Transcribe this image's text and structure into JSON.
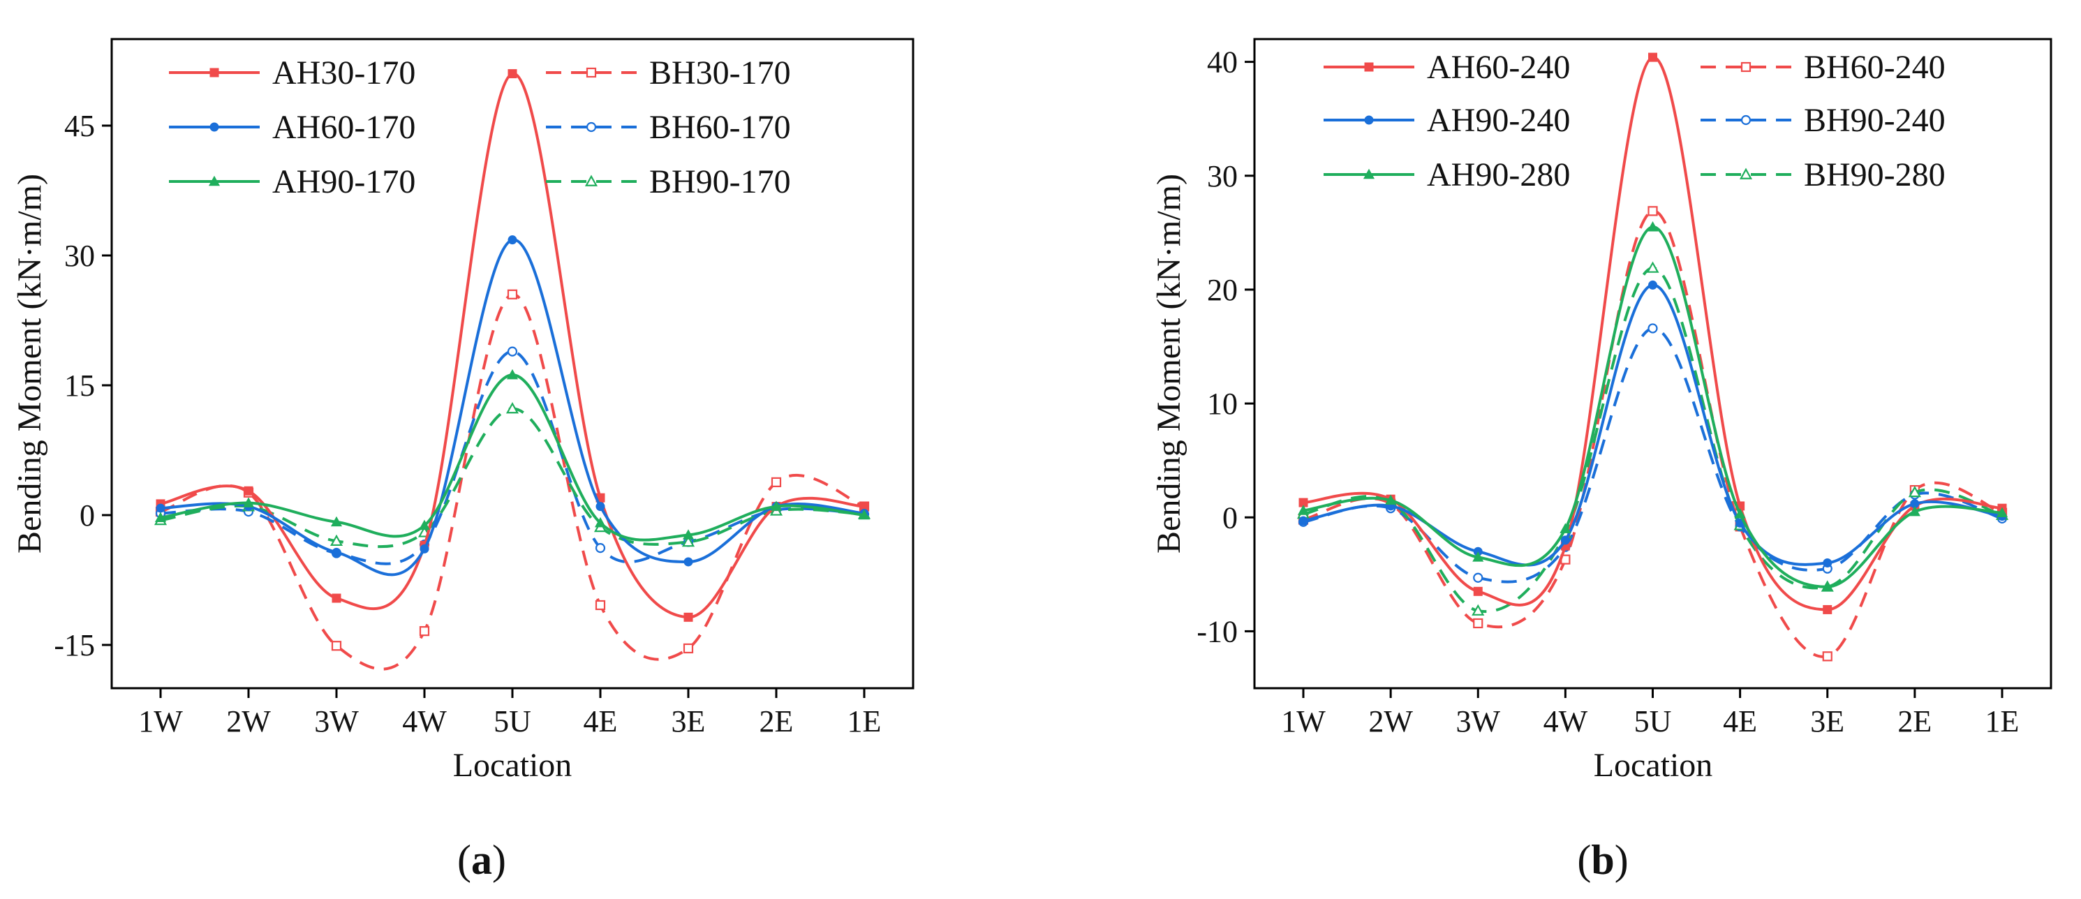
{
  "chart_data": [
    {
      "type": "line",
      "panel_label": "a",
      "xlabel": "Location",
      "ylabel": "Bending Moment (kN·m/m)",
      "categories": [
        "1W",
        "2W",
        "3W",
        "4W",
        "5U",
        "4E",
        "3E",
        "2E",
        "1E"
      ],
      "ylim": [
        -20,
        55
      ],
      "yticks": [
        -15,
        0,
        15,
        30,
        45
      ],
      "ytick_labels": [
        "-15",
        "0",
        "15",
        "30",
        "45"
      ],
      "series": [
        {
          "name": "AH30-170",
          "color": "#f04a4a",
          "style": "solid",
          "marker": "square-filled",
          "values": [
            1.3,
            2.8,
            -9.6,
            -3.5,
            51.0,
            2.0,
            -11.8,
            1.0,
            1.0
          ]
        },
        {
          "name": "AH60-170",
          "color": "#1a6fd9",
          "style": "solid",
          "marker": "circle-filled",
          "values": [
            0.8,
            1.0,
            -4.3,
            -3.9,
            31.8,
            1.0,
            -5.4,
            1.0,
            0.2
          ]
        },
        {
          "name": "AH90-170",
          "color": "#1fae5c",
          "style": "solid",
          "marker": "triangle-filled",
          "values": [
            -0.3,
            1.4,
            -0.8,
            -1.2,
            16.2,
            -0.9,
            -2.3,
            1.0,
            0.0
          ]
        },
        {
          "name": "BH30-170",
          "color": "#f04a4a",
          "style": "dashed",
          "marker": "square-open",
          "values": [
            0.4,
            2.6,
            -15.1,
            -13.4,
            25.5,
            -10.4,
            -15.4,
            3.8,
            1.0
          ]
        },
        {
          "name": "BH60-170",
          "color": "#1a6fd9",
          "style": "dashed",
          "marker": "circle-open",
          "values": [
            0.2,
            0.4,
            -4.4,
            -3.4,
            18.9,
            -3.8,
            -3.1,
            0.6,
            0.1
          ]
        },
        {
          "name": "BH90-170",
          "color": "#1fae5c",
          "style": "dashed",
          "marker": "triangle-open",
          "values": [
            -0.6,
            1.0,
            -3.0,
            -2.0,
            12.3,
            -1.4,
            -3.1,
            0.5,
            0.1
          ]
        }
      ]
    },
    {
      "type": "line",
      "panel_label": "b",
      "xlabel": "Location",
      "ylabel": "Bending Moment (kN·m/m)",
      "categories": [
        "1W",
        "2W",
        "3W",
        "4W",
        "5U",
        "4E",
        "3E",
        "2E",
        "1E"
      ],
      "ylim": [
        -15,
        42
      ],
      "yticks": [
        -10,
        0,
        10,
        20,
        30,
        40
      ],
      "ytick_labels": [
        "-10",
        "0",
        "10",
        "20",
        "30",
        "40"
      ],
      "series": [
        {
          "name": "AH60-240",
          "color": "#f04a4a",
          "style": "solid",
          "marker": "square-filled",
          "values": [
            1.3,
            1.6,
            -6.5,
            -2.5,
            40.4,
            1.0,
            -8.1,
            1.0,
            0.8
          ]
        },
        {
          "name": "AH90-240",
          "color": "#1a6fd9",
          "style": "solid",
          "marker": "circle-filled",
          "values": [
            -0.3,
            1.0,
            -3.0,
            -2.0,
            20.4,
            -0.5,
            -4.0,
            1.2,
            0.1
          ]
        },
        {
          "name": "AH90-280",
          "color": "#1fae5c",
          "style": "solid",
          "marker": "triangle-filled",
          "values": [
            0.6,
            1.5,
            -3.5,
            -1.0,
            25.5,
            0.3,
            -6.1,
            0.5,
            0.4
          ]
        },
        {
          "name": "BH60-240",
          "color": "#f04a4a",
          "style": "dashed",
          "marker": "square-open",
          "values": [
            -0.2,
            1.2,
            -9.3,
            -3.7,
            26.9,
            -0.8,
            -12.2,
            2.4,
            0.4
          ]
        },
        {
          "name": "BH90-240",
          "color": "#1a6fd9",
          "style": "dashed",
          "marker": "circle-open",
          "values": [
            -0.4,
            0.8,
            -5.3,
            -2.6,
            16.6,
            -0.8,
            -4.5,
            2.0,
            -0.1
          ]
        },
        {
          "name": "BH90-280",
          "color": "#1fae5c",
          "style": "dashed",
          "marker": "triangle-open",
          "values": [
            0.3,
            1.4,
            -8.2,
            -1.4,
            21.9,
            -0.7,
            -6.1,
            2.2,
            0.2
          ]
        }
      ]
    }
  ]
}
